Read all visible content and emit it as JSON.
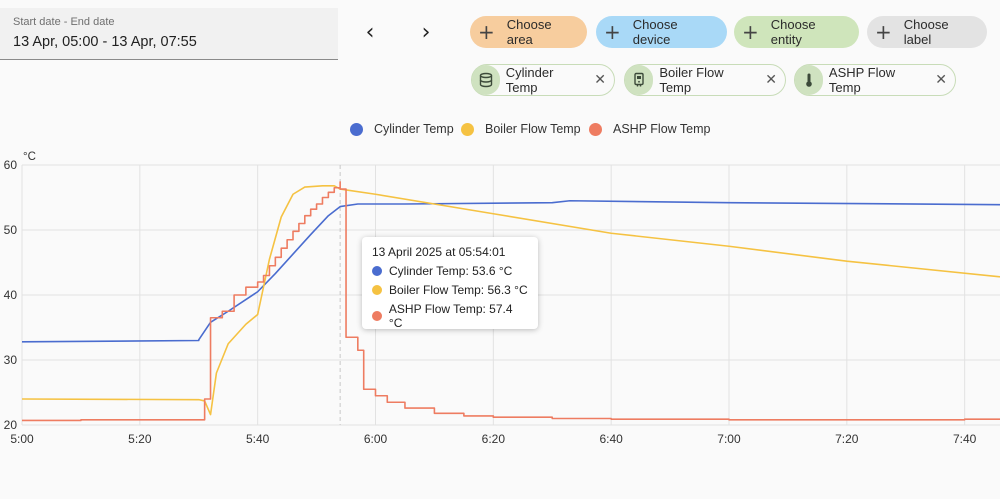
{
  "date_range": {
    "label": "Start date - End date",
    "value": "13 Apr, 05:00 - 13 Apr, 07:55"
  },
  "nav": {
    "prev": "‹",
    "next": "›"
  },
  "pickers": [
    {
      "label": "Choose area",
      "color": "#f7cd9e"
    },
    {
      "label": "Choose device",
      "color": "#a9d9f7"
    },
    {
      "label": "Choose entity",
      "color": "#cfe5bb"
    },
    {
      "label": "Choose label",
      "color": "#e3e3e3"
    }
  ],
  "selected_entities": [
    {
      "label": "Cylinder Temp",
      "icon": "cylinder-icon"
    },
    {
      "label": "Boiler Flow Temp",
      "icon": "boiler-icon"
    },
    {
      "label": "ASHP Flow Temp",
      "icon": "thermometer-icon"
    }
  ],
  "remove_symbol": "✕",
  "tooltip": {
    "title": "13 April 2025 at 05:54:01",
    "rows": [
      {
        "text": "Cylinder Temp: 53.6 °C",
        "color": "#4a6ccf"
      },
      {
        "text": "Boiler Flow Temp: 56.3 °C",
        "color": "#f5c242"
      },
      {
        "text": "ASHP Flow Temp: 57.4 °C",
        "color": "#ee7c61"
      }
    ]
  },
  "chart_data": {
    "type": "line",
    "ylabel": "°C",
    "ylim": [
      20,
      60
    ],
    "yticks": [
      20,
      30,
      40,
      50,
      60
    ],
    "xlim": [
      "05:00",
      "07:46"
    ],
    "xticks": [
      "5:00",
      "5:20",
      "5:40",
      "6:00",
      "6:20",
      "6:40",
      "7:00",
      "7:20",
      "7:40"
    ],
    "grid": true,
    "legend_position": "top-center",
    "cursor_time": "05:54",
    "series": [
      {
        "name": "Cylinder Temp",
        "color": "#4a6ccf",
        "step": false,
        "points": [
          [
            "05:00",
            32.8
          ],
          [
            "05:30",
            33.0
          ],
          [
            "05:30",
            33.1
          ],
          [
            "05:32",
            35.8
          ],
          [
            "05:35",
            37.5
          ],
          [
            "05:38",
            39.3
          ],
          [
            "05:40",
            40.5
          ],
          [
            "05:43",
            43.3
          ],
          [
            "05:46",
            46.3
          ],
          [
            "05:49",
            49.3
          ],
          [
            "05:52",
            52.2
          ],
          [
            "05:54",
            53.6
          ],
          [
            "05:57",
            54.0
          ],
          [
            "06:05",
            54.0
          ],
          [
            "06:30",
            54.2
          ],
          [
            "06:33",
            54.5
          ],
          [
            "07:00",
            54.2
          ],
          [
            "07:46",
            53.9
          ]
        ]
      },
      {
        "name": "Boiler Flow Temp",
        "color": "#f5c242",
        "step": false,
        "points": [
          [
            "05:00",
            24.0
          ],
          [
            "05:30",
            23.9
          ],
          [
            "05:31",
            23.7
          ],
          [
            "05:32",
            21.6
          ],
          [
            "05:33",
            28.0
          ],
          [
            "05:35",
            32.5
          ],
          [
            "05:38",
            35.5
          ],
          [
            "05:40",
            37.0
          ],
          [
            "05:42",
            45.5
          ],
          [
            "05:44",
            52.0
          ],
          [
            "05:46",
            55.5
          ],
          [
            "05:48",
            56.6
          ],
          [
            "05:51",
            56.8
          ],
          [
            "05:53",
            56.8
          ],
          [
            "05:54",
            56.3
          ],
          [
            "06:00",
            55.5
          ],
          [
            "06:20",
            52.5
          ],
          [
            "06:40",
            49.5
          ],
          [
            "07:00",
            47.5
          ],
          [
            "07:20",
            45.2
          ],
          [
            "07:46",
            42.8
          ]
        ]
      },
      {
        "name": "ASHP Flow Temp",
        "color": "#ee7c61",
        "step": true,
        "points": [
          [
            "05:00",
            20.7
          ],
          [
            "05:10",
            20.8
          ],
          [
            "05:20",
            20.8
          ],
          [
            "05:31",
            21.0
          ],
          [
            "05:31",
            24.0
          ],
          [
            "05:32",
            36.5
          ],
          [
            "05:34",
            37.5
          ],
          [
            "05:36",
            40.0
          ],
          [
            "05:38",
            41.2
          ],
          [
            "05:40",
            42.0
          ],
          [
            "05:41",
            43.0
          ],
          [
            "05:42",
            44.5
          ],
          [
            "05:43",
            45.8
          ],
          [
            "05:44",
            47.2
          ],
          [
            "05:45",
            48.5
          ],
          [
            "05:46",
            49.8
          ],
          [
            "05:47",
            51.0
          ],
          [
            "05:48",
            52.2
          ],
          [
            "05:49",
            53.2
          ],
          [
            "05:50",
            54.0
          ],
          [
            "05:51",
            55.0
          ],
          [
            "05:52",
            55.8
          ],
          [
            "05:53",
            56.5
          ],
          [
            "05:54",
            57.4
          ],
          [
            "05:54",
            56.3
          ],
          [
            "05:55",
            33.5
          ],
          [
            "05:57",
            31.5
          ],
          [
            "05:58",
            25.5
          ],
          [
            "06:00",
            24.5
          ],
          [
            "06:02",
            23.5
          ],
          [
            "06:05",
            22.6
          ],
          [
            "06:10",
            21.8
          ],
          [
            "06:15",
            21.4
          ],
          [
            "06:20",
            21.2
          ],
          [
            "06:30",
            21.0
          ],
          [
            "06:40",
            20.9
          ],
          [
            "07:00",
            20.8
          ],
          [
            "07:20",
            20.8
          ],
          [
            "07:40",
            20.9
          ],
          [
            "07:46",
            21.0
          ]
        ]
      }
    ]
  }
}
